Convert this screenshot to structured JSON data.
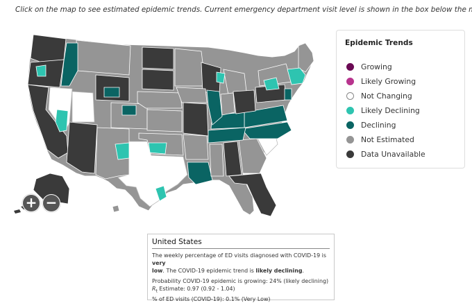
{
  "instructions": "Click on the map to see estimated epidemic trends. Current emergency department visit level is shown in the box below the map.",
  "colors": {
    "growing": "#6b0a54",
    "likely_growing": "#b8348e",
    "not_changing": "#ffffff",
    "likely_declining": "#2ec4b0",
    "declining": "#0a6463",
    "not_estimated": "#959595",
    "data_unavailable": "#3a3a3a",
    "state_border": "#ffffff"
  },
  "legend": {
    "title": "Epidemic Trends",
    "items": [
      {
        "label": "Growing",
        "color": "#6b0a54"
      },
      {
        "label": "Likely Growing",
        "color": "#b8348e"
      },
      {
        "label": "Not Changing",
        "color": "#ffffff"
      },
      {
        "label": "Likely Declining",
        "color": "#2ec4b0"
      },
      {
        "label": "Declining",
        "color": "#0a6463"
      },
      {
        "label": "Not Estimated",
        "color": "#959595"
      },
      {
        "label": "Data Unavailable",
        "color": "#3a3a3a"
      }
    ]
  },
  "zoom": {
    "in_label": "+",
    "out_label": "−"
  },
  "info": {
    "title": "United States",
    "line1_a": "The weekly percentage of ED visits diagnosed with COVID-19 is ",
    "line1_b": "very",
    "line2_a": "low",
    "line2_b": ". The COVID-19 epidemic trend is ",
    "line2_c": "likely declining",
    "line2_d": ".",
    "prob": "Probability COVID-19 epidemic is growing: 24% (likely declining)",
    "rt_symbol": "R",
    "rt_sub": "t",
    "rt_rest": " Estimate: 0.97 (0.92 - 1.04)",
    "pct": "% of ED visits (COVID-19): 0.1% (Very Low)"
  }
}
